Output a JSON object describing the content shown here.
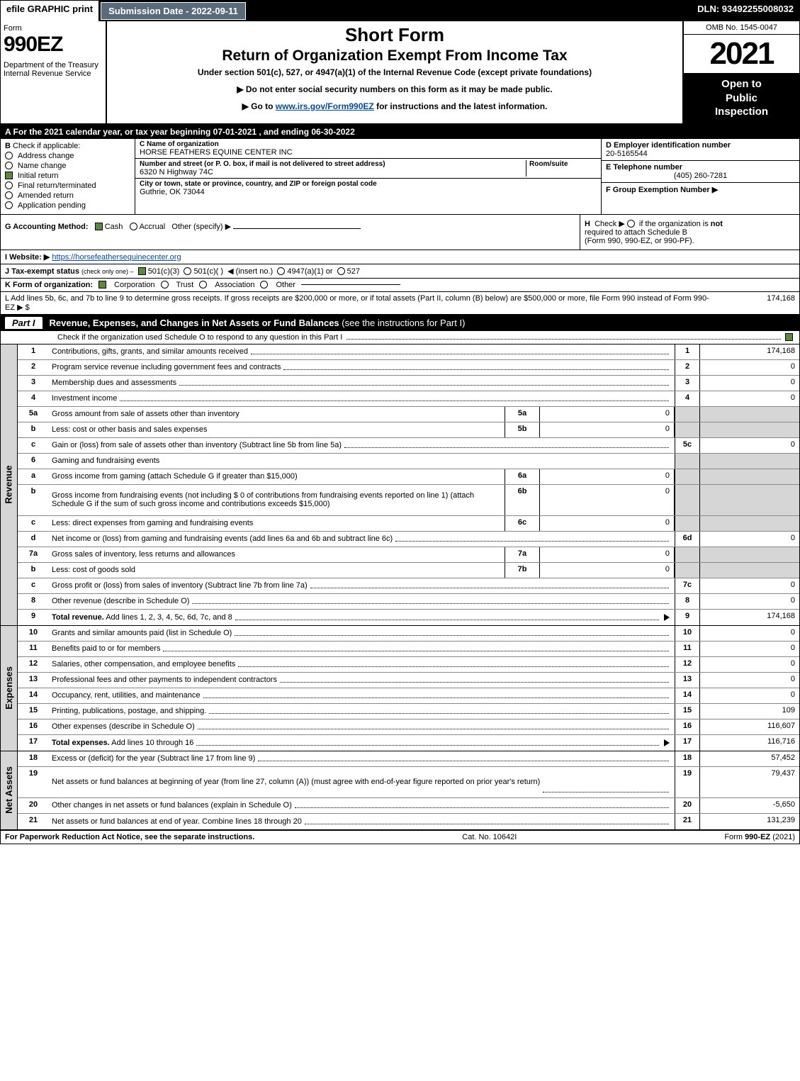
{
  "colors": {
    "black": "#000000",
    "white": "#ffffff",
    "grayShade": "#d6d6d6",
    "headerGray": "#596a7a",
    "checkGreen": "#5b8a3c",
    "link": "#004b9b"
  },
  "topbar": {
    "efile": "efile GRAPHIC print",
    "subdate_label": "Submission Date - 2022-09-11",
    "dln": "DLN: 93492255008032"
  },
  "header": {
    "form_word": "Form",
    "form_num": "990EZ",
    "dept": "Department of the Treasury\nInternal Revenue Service",
    "title1": "Short Form",
    "title2": "Return of Organization Exempt From Income Tax",
    "sub": "Under section 501(c), 527, or 4947(a)(1) of the Internal Revenue Code (except private foundations)",
    "note1": "▶ Do not enter social security numbers on this form as it may be made public.",
    "note2_pre": "▶ Go to ",
    "note2_link": "www.irs.gov/Form990EZ",
    "note2_post": " for instructions and the latest information.",
    "omb": "OMB No. 1545-0047",
    "year": "2021",
    "open1": "Open to",
    "open2": "Public",
    "open3": "Inspection"
  },
  "rowA": "A  For the 2021 calendar year, or tax year beginning 07-01-2021 , and ending 06-30-2022",
  "B": {
    "label": "B",
    "text": "Check if applicable:",
    "items": [
      {
        "label": "Address change",
        "checked": false
      },
      {
        "label": "Name change",
        "checked": false
      },
      {
        "label": "Initial return",
        "checked": true
      },
      {
        "label": "Final return/terminated",
        "checked": false
      },
      {
        "label": "Amended return",
        "checked": false
      },
      {
        "label": "Application pending",
        "checked": false
      }
    ]
  },
  "C": {
    "name_lbl": "C Name of organization",
    "name": "HORSE FEATHERS EQUINE CENTER INC",
    "street_lbl": "Number and street (or P. O. box, if mail is not delivered to street address)",
    "room_lbl": "Room/suite",
    "street": "6320 N Highway 74C",
    "city_lbl": "City or town, state or province, country, and ZIP or foreign postal code",
    "city": "Guthrie, OK  73044"
  },
  "D": {
    "ein_lbl": "D Employer identification number",
    "ein": "20-5165544",
    "tel_lbl": "E Telephone number",
    "tel": "(405) 260-7281",
    "grp_lbl": "F Group Exemption Number   ▶"
  },
  "G": {
    "lbl": "G Accounting Method:",
    "cash": "Cash",
    "accrual": "Accrual",
    "other": "Other (specify) ▶"
  },
  "H": {
    "lbl": "H",
    "text1": "Check ▶",
    "text2": "if the organization is ",
    "not": "not",
    "text3": "required to attach Schedule B",
    "text4": "(Form 990, 990-EZ, or 990-PF)."
  },
  "I": {
    "lbl": "I Website: ▶",
    "url": "https://horsefeathersequinecenter.org"
  },
  "J": {
    "lbl": "J Tax-exempt status",
    "small": "(check only one) –",
    "c3": "501(c)(3)",
    "c": "501(c)(  )",
    "ins": "◀ (insert no.)",
    "a1": "4947(a)(1) or",
    "s527": "527"
  },
  "K": {
    "lbl": "K Form of organization:",
    "corp": "Corporation",
    "trust": "Trust",
    "assoc": "Association",
    "other": "Other"
  },
  "L": {
    "text": "L Add lines 5b, 6c, and 7b to line 9 to determine gross receipts. If gross receipts are $200,000 or more, or if total assets (Part II, column (B) below) are $500,000 or more, file Form 990 instead of Form 990-EZ",
    "arrow": "▶ $",
    "amount": "174,168"
  },
  "partI": {
    "tag": "Part I",
    "title": "Revenue, Expenses, and Changes in Net Assets or Fund Balances",
    "title_paren": "(see the instructions for Part I)",
    "sub": "Check if the organization used Schedule O to respond to any question in this Part I"
  },
  "revenue": {
    "side": "Revenue",
    "rows": [
      {
        "ln": "1",
        "desc": "Contributions, gifts, grants, and similar amounts received",
        "num": "1",
        "amt": "174,168"
      },
      {
        "ln": "2",
        "desc": "Program service revenue including government fees and contracts",
        "num": "2",
        "amt": "0"
      },
      {
        "ln": "3",
        "desc": "Membership dues and assessments",
        "num": "3",
        "amt": "0"
      },
      {
        "ln": "4",
        "desc": "Investment income",
        "num": "4",
        "amt": "0"
      },
      {
        "ln": "5a",
        "desc": "Gross amount from sale of assets other than inventory",
        "sub": "5a",
        "subAmt": "0",
        "shade": true
      },
      {
        "ln": "b",
        "desc": "Less: cost or other basis and sales expenses",
        "sub": "5b",
        "subAmt": "0",
        "shade": true
      },
      {
        "ln": "c",
        "desc": "Gain or (loss) from sale of assets other than inventory (Subtract line 5b from line 5a)",
        "num": "5c",
        "amt": "0"
      },
      {
        "ln": "6",
        "desc": "Gaming and fundraising events",
        "shade": true,
        "noAmt": true
      },
      {
        "ln": "a",
        "desc": "Gross income from gaming (attach Schedule G if greater than $15,000)",
        "sub": "6a",
        "subAmt": "0",
        "shade": true
      },
      {
        "ln": "b",
        "desc": "Gross income from fundraising events (not including $  0         of contributions from fundraising events reported on line 1) (attach Schedule G if the sum of such gross income and contributions exceeds $15,000)",
        "sub": "6b",
        "subAmt": "0",
        "shade": true,
        "tall": true
      },
      {
        "ln": "c",
        "desc": "Less: direct expenses from gaming and fundraising events",
        "sub": "6c",
        "subAmt": "0",
        "shade": true
      },
      {
        "ln": "d",
        "desc": "Net income or (loss) from gaming and fundraising events (add lines 6a and 6b and subtract line 6c)",
        "num": "6d",
        "amt": "0"
      },
      {
        "ln": "7a",
        "desc": "Gross sales of inventory, less returns and allowances",
        "sub": "7a",
        "subAmt": "0",
        "shade": true
      },
      {
        "ln": "b",
        "desc": "Less: cost of goods sold",
        "sub": "7b",
        "subAmt": "0",
        "shade": true
      },
      {
        "ln": "c",
        "desc": "Gross profit or (loss) from sales of inventory (Subtract line 7b from line 7a)",
        "num": "7c",
        "amt": "0"
      },
      {
        "ln": "8",
        "desc": "Other revenue (describe in Schedule O)",
        "num": "8",
        "amt": "0"
      },
      {
        "ln": "9",
        "desc": "Total revenue. Add lines 1, 2, 3, 4, 5c, 6d, 7c, and 8",
        "num": "9",
        "amt": "174,168",
        "bold": true,
        "arrow": true
      }
    ]
  },
  "expenses": {
    "side": "Expenses",
    "rows": [
      {
        "ln": "10",
        "desc": "Grants and similar amounts paid (list in Schedule O)",
        "num": "10",
        "amt": "0"
      },
      {
        "ln": "11",
        "desc": "Benefits paid to or for members",
        "num": "11",
        "amt": "0"
      },
      {
        "ln": "12",
        "desc": "Salaries, other compensation, and employee benefits",
        "num": "12",
        "amt": "0"
      },
      {
        "ln": "13",
        "desc": "Professional fees and other payments to independent contractors",
        "num": "13",
        "amt": "0"
      },
      {
        "ln": "14",
        "desc": "Occupancy, rent, utilities, and maintenance",
        "num": "14",
        "amt": "0"
      },
      {
        "ln": "15",
        "desc": "Printing, publications, postage, and shipping.",
        "num": "15",
        "amt": "109"
      },
      {
        "ln": "16",
        "desc": "Other expenses (describe in Schedule O)",
        "num": "16",
        "amt": "116,607"
      },
      {
        "ln": "17",
        "desc": "Total expenses. Add lines 10 through 16",
        "num": "17",
        "amt": "116,716",
        "bold": true,
        "arrow": true
      }
    ]
  },
  "netassets": {
    "side": "Net Assets",
    "rows": [
      {
        "ln": "18",
        "desc": "Excess or (deficit) for the year (Subtract line 17 from line 9)",
        "num": "18",
        "amt": "57,452"
      },
      {
        "ln": "19",
        "desc": "Net assets or fund balances at beginning of year (from line 27, column (A)) (must agree with end-of-year figure reported on prior year's return)",
        "num": "19",
        "amt": "79,437",
        "tall": true
      },
      {
        "ln": "20",
        "desc": "Other changes in net assets or fund balances (explain in Schedule O)",
        "num": "20",
        "amt": "-5,650"
      },
      {
        "ln": "21",
        "desc": "Net assets or fund balances at end of year. Combine lines 18 through 20",
        "num": "21",
        "amt": "131,239"
      }
    ]
  },
  "footer": {
    "left": "For Paperwork Reduction Act Notice, see the separate instructions.",
    "mid": "Cat. No. 10642I",
    "right_pre": "Form ",
    "right_bold": "990-EZ",
    "right_post": " (2021)"
  }
}
